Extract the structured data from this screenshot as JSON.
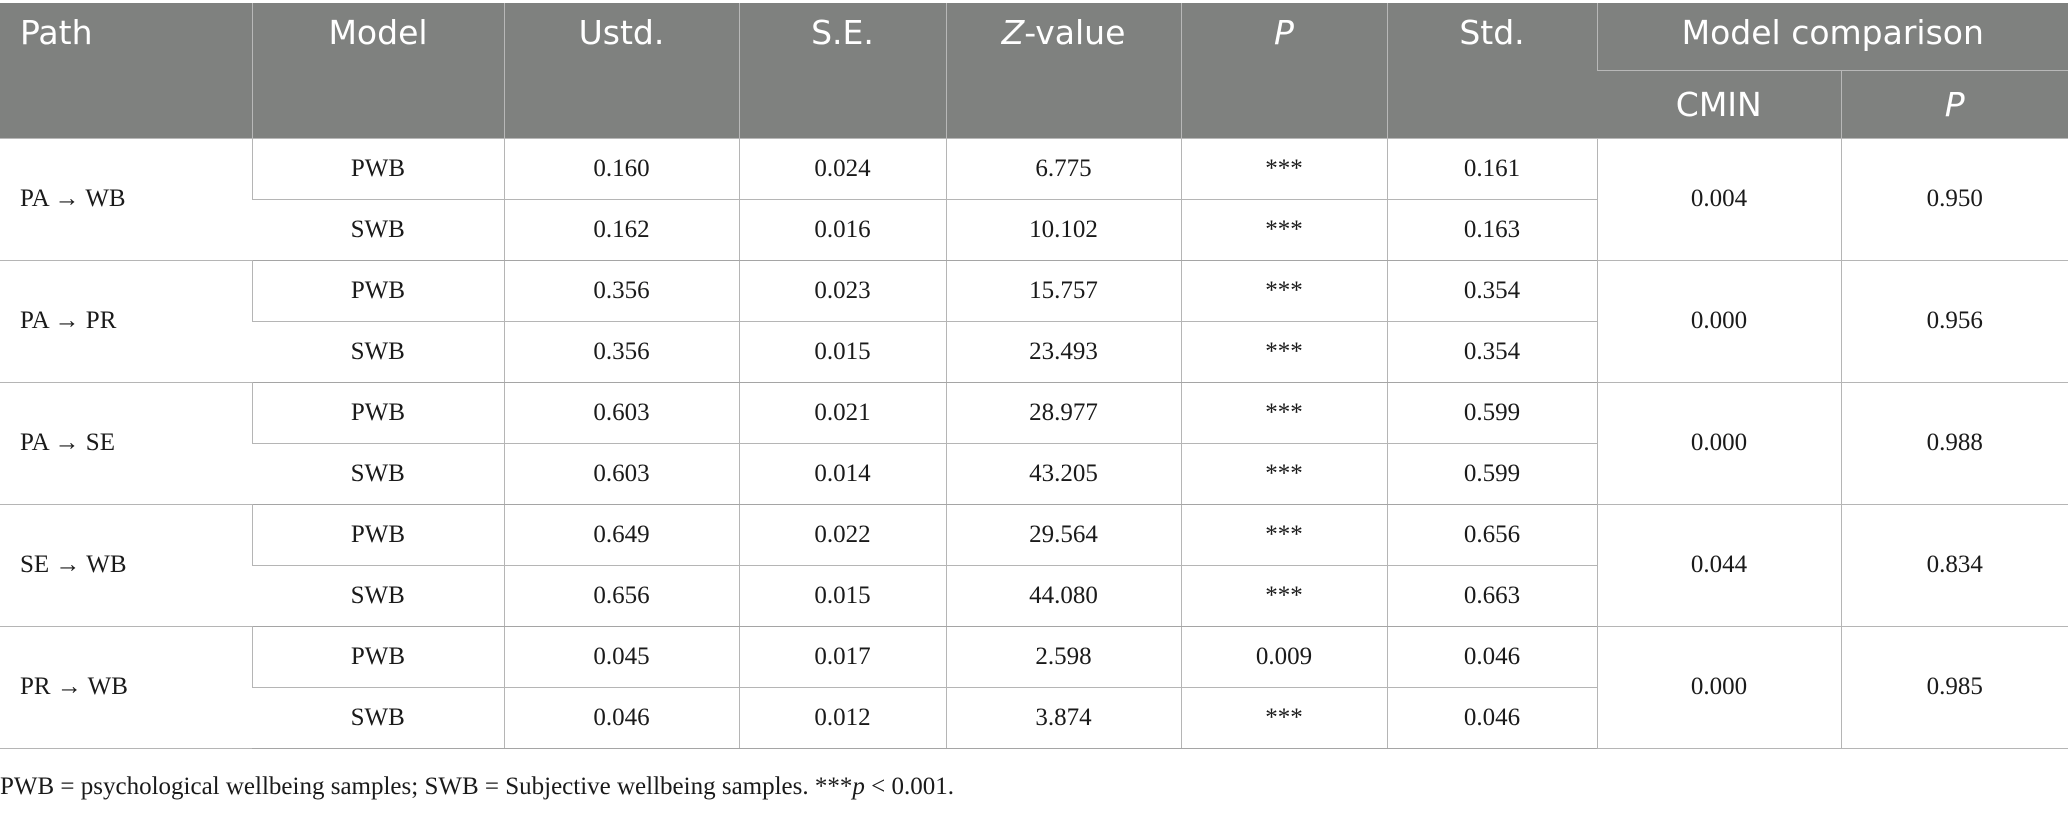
{
  "headers": {
    "path": "Path",
    "model": "Model",
    "ustd": "Ustd.",
    "se": "S.E.",
    "z_italic": "Z",
    "z_rest": "-value",
    "p": "P",
    "std": "Std.",
    "comparison": "Model comparison",
    "cmin": "CMIN",
    "comparison_p": "P"
  },
  "rows": [
    {
      "path": "PA → WB",
      "a": {
        "model": "PWB",
        "ustd": "0.160",
        "se": "0.024",
        "z": "6.775",
        "p": "***",
        "std": "0.161"
      },
      "b": {
        "model": "SWB",
        "ustd": "0.162",
        "se": "0.016",
        "z": "10.102",
        "p": "***",
        "std": "0.163"
      },
      "cmin": "0.004",
      "cp": "0.950"
    },
    {
      "path": "PA → PR",
      "a": {
        "model": "PWB",
        "ustd": "0.356",
        "se": "0.023",
        "z": "15.757",
        "p": "***",
        "std": "0.354"
      },
      "b": {
        "model": "SWB",
        "ustd": "0.356",
        "se": "0.015",
        "z": "23.493",
        "p": "***",
        "std": "0.354"
      },
      "cmin": "0.000",
      "cp": "0.956"
    },
    {
      "path": "PA → SE",
      "a": {
        "model": "PWB",
        "ustd": "0.603",
        "se": "0.021",
        "z": "28.977",
        "p": "***",
        "std": "0.599"
      },
      "b": {
        "model": "SWB",
        "ustd": "0.603",
        "se": "0.014",
        "z": "43.205",
        "p": "***",
        "std": "0.599"
      },
      "cmin": "0.000",
      "cp": "0.988"
    },
    {
      "path": "SE → WB",
      "a": {
        "model": "PWB",
        "ustd": "0.649",
        "se": "0.022",
        "z": "29.564",
        "p": "***",
        "std": "0.656"
      },
      "b": {
        "model": "SWB",
        "ustd": "0.656",
        "se": "0.015",
        "z": "44.080",
        "p": "***",
        "std": "0.663"
      },
      "cmin": "0.044",
      "cp": "0.834"
    },
    {
      "path": "PR → WB",
      "a": {
        "model": "PWB",
        "ustd": "0.045",
        "se": "0.017",
        "z": "2.598",
        "p": "0.009",
        "std": "0.046"
      },
      "b": {
        "model": "SWB",
        "ustd": "0.046",
        "se": "0.012",
        "z": "3.874",
        "p": "***",
        "std": "0.046"
      },
      "cmin": "0.000",
      "cp": "0.985"
    }
  ],
  "note": {
    "text1": "PWB = psychological wellbeing samples; SWB = Subjective wellbeing samples. ***",
    "p_italic": "p",
    "text2": " < 0.001."
  },
  "colors": {
    "header_bg": "#7f817f",
    "header_text": "#ffffff",
    "grid": "#b5b5b5"
  }
}
